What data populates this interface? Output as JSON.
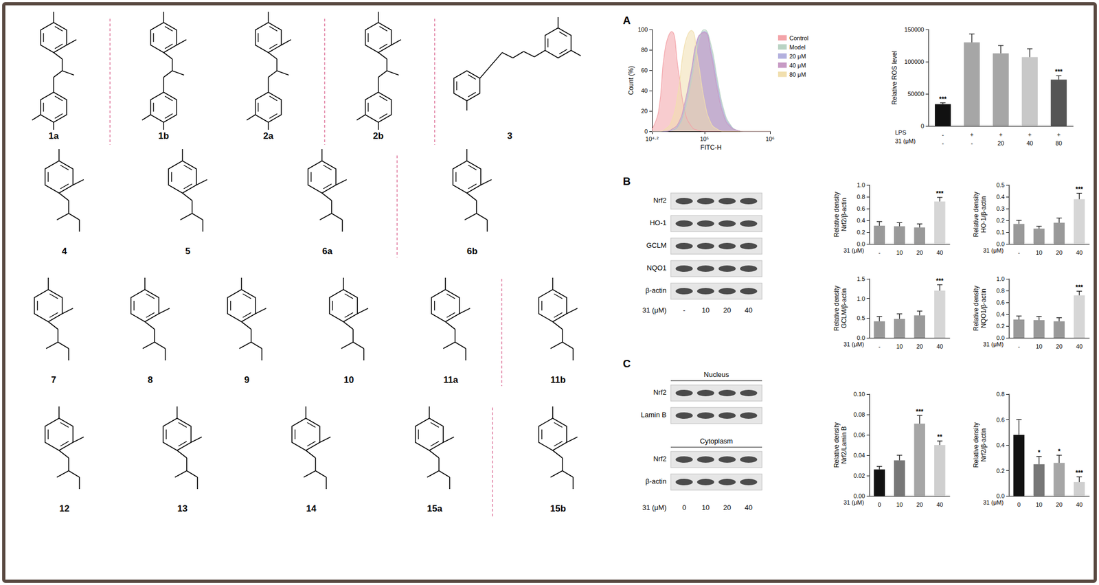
{
  "panel_labels": [
    "A",
    "B",
    "C"
  ],
  "structures": [
    "1a",
    "1b",
    "2a",
    "2b",
    "3",
    "4",
    "5",
    "6a",
    "6b",
    "7",
    "8",
    "9",
    "10",
    "11a",
    "11b",
    "12",
    "13",
    "14",
    "15a",
    "15b"
  ],
  "blots_B": {
    "rows": [
      "Nrf2",
      "HO-1",
      "GCLM",
      "NQO1",
      "β-actin"
    ],
    "lanes": [
      "-",
      "10",
      "20",
      "40"
    ],
    "lane_label": "31 (μM)"
  },
  "blots_C": {
    "groups": [
      {
        "title": "Nucleus",
        "rows": [
          "Nrf2",
          "Lamin B"
        ]
      },
      {
        "title": "Cytoplasm",
        "rows": [
          "Nrf2",
          "β-actin"
        ]
      }
    ],
    "lanes": [
      "0",
      "10",
      "20",
      "40"
    ],
    "lane_label": "31 (μM)"
  },
  "chart_data": [
    {
      "type": "line",
      "x_label": "FITC-H",
      "y_label": "Count (%)",
      "log": "x",
      "grid": false,
      "legend": "right",
      "x": [
        15848.93,
        20000,
        25000,
        31623,
        40000,
        50000,
        63096,
        79433,
        100000,
        125893,
        158489,
        199526,
        251189,
        316228,
        398107,
        501187,
        1000000
      ],
      "series": [
        {
          "name": "Control",
          "color": "#f3a3a8",
          "values": [
            2,
            20,
            80,
            98,
            60,
            20,
            5,
            1,
            0,
            0,
            0,
            0,
            0,
            0,
            0,
            0,
            0
          ]
        },
        {
          "name": "Model",
          "color": "#b9d3c3",
          "values": [
            0,
            0,
            0,
            1,
            5,
            20,
            50,
            85,
            100,
            85,
            50,
            20,
            6,
            1,
            0,
            0,
            0
          ]
        },
        {
          "name": "20 μM",
          "color": "#b3b0de",
          "values": [
            0,
            0,
            0,
            1,
            6,
            24,
            56,
            90,
            98,
            80,
            45,
            17,
            5,
            1,
            0,
            0,
            0
          ]
        },
        {
          "name": "40 μM",
          "color": "#c79ac4",
          "values": [
            0,
            0,
            0,
            2,
            8,
            28,
            60,
            92,
            97,
            76,
            40,
            14,
            4,
            1,
            0,
            0,
            0
          ]
        },
        {
          "name": "80 μM",
          "color": "#f1dfae",
          "values": [
            0,
            0,
            2,
            10,
            40,
            85,
            99,
            70,
            30,
            8,
            2,
            0,
            0,
            0,
            0,
            0,
            0
          ]
        }
      ],
      "xlim": [
        15848.93,
        1000000
      ],
      "xticks": [
        {
          "value": 15848.93,
          "label": "10⁴·²"
        },
        {
          "value": 100000,
          "label": "10⁵"
        },
        {
          "value": 1000000,
          "label": "10⁶"
        }
      ],
      "ylim": [
        0,
        100
      ],
      "yticks": [
        0,
        20,
        40,
        60,
        80,
        100
      ]
    },
    {
      "type": "bar",
      "y_label": "Relative ROS level",
      "grid": false,
      "x_rows": [
        {
          "label": "LPS",
          "values": [
            "-",
            "+",
            "+",
            "+",
            "+"
          ]
        },
        {
          "label": "31 (μM)",
          "values": [
            "-",
            "-",
            "20",
            "40",
            "80"
          ]
        }
      ],
      "values": [
        34000,
        130000,
        113000,
        107000,
        72000
      ],
      "errors": [
        2000,
        13000,
        12000,
        13000,
        6000
      ],
      "annotations": [
        "***",
        null,
        null,
        null,
        "***"
      ],
      "colors": [
        "#111111",
        "#a6a6a6",
        "#a6a6a6",
        "#c8c8c8",
        "#555555"
      ],
      "ylim": [
        0,
        150000
      ],
      "yticks": [
        0,
        50000,
        100000,
        150000
      ]
    },
    {
      "type": "bar",
      "y_label": "Relative density\nNrf2/β-actin",
      "x_label": "31 (μM)",
      "grid": false,
      "categories": [
        "-",
        "10",
        "20",
        "40"
      ],
      "values": [
        0.31,
        0.3,
        0.28,
        0.72
      ],
      "errors": [
        0.07,
        0.06,
        0.06,
        0.07
      ],
      "annotations": [
        null,
        null,
        null,
        "***"
      ],
      "colors": [
        "#999999",
        "#999999",
        "#999999",
        "#d6d6d6"
      ],
      "ylim": [
        0,
        1
      ],
      "yticks": [
        {
          "value": 0,
          "label": "0.0"
        },
        0.2,
        0.4,
        0.6,
        0.8,
        {
          "value": 1,
          "label": "1.0"
        }
      ]
    },
    {
      "type": "bar",
      "y_label": "Relative density\nHO-1/β-actin",
      "x_label": "31 (μM)",
      "grid": false,
      "categories": [
        "-",
        "10",
        "20",
        "40"
      ],
      "values": [
        0.17,
        0.13,
        0.18,
        0.38
      ],
      "errors": [
        0.03,
        0.02,
        0.04,
        0.05
      ],
      "annotations": [
        null,
        null,
        null,
        "***"
      ],
      "colors": [
        "#999999",
        "#999999",
        "#999999",
        "#d6d6d6"
      ],
      "ylim": [
        0,
        0.5
      ],
      "yticks": [
        {
          "value": 0,
          "label": "0.0"
        },
        0.1,
        0.2,
        0.3,
        0.4,
        0.5
      ]
    },
    {
      "type": "bar",
      "y_label": "Relative density\nGCLM/β-actin",
      "x_label": "31 (μM)",
      "grid": false,
      "categories": [
        "-",
        "10",
        "20",
        "40"
      ],
      "values": [
        0.42,
        0.48,
        0.57,
        1.2
      ],
      "errors": [
        0.12,
        0.13,
        0.11,
        0.15
      ],
      "annotations": [
        null,
        null,
        null,
        "***"
      ],
      "colors": [
        "#999999",
        "#999999",
        "#999999",
        "#d6d6d6"
      ],
      "ylim": [
        0,
        1.5
      ],
      "yticks": [
        {
          "value": 0,
          "label": "0.0"
        },
        0.5,
        {
          "value": 1,
          "label": "1.0"
        },
        1.5
      ]
    },
    {
      "type": "bar",
      "y_label": "Relative density\nNQO1/β-actin",
      "x_label": "31 (μM)",
      "grid": false,
      "categories": [
        "-",
        "10",
        "20",
        "40"
      ],
      "values": [
        0.31,
        0.3,
        0.28,
        0.72
      ],
      "errors": [
        0.06,
        0.06,
        0.06,
        0.07
      ],
      "annotations": [
        null,
        null,
        null,
        "***"
      ],
      "colors": [
        "#999999",
        "#999999",
        "#999999",
        "#d6d6d6"
      ],
      "ylim": [
        0,
        1
      ],
      "yticks": [
        {
          "value": 0,
          "label": "0.0"
        },
        0.2,
        0.4,
        0.6,
        0.8,
        {
          "value": 1,
          "label": "1.0"
        }
      ]
    },
    {
      "type": "bar",
      "y_label": "Relative density\nNrf2/Lamin B",
      "x_label": "31 (μM)",
      "grid": false,
      "categories": [
        "0",
        "10",
        "20",
        "40"
      ],
      "values": [
        0.026,
        0.035,
        0.071,
        0.05
      ],
      "errors": [
        0.003,
        0.005,
        0.008,
        0.004
      ],
      "annotations": [
        null,
        null,
        "***",
        "**"
      ],
      "colors": [
        "#111111",
        "#777777",
        "#a6a6a6",
        "#cfcfcf"
      ],
      "ylim": [
        0,
        0.1
      ],
      "yticks": [
        {
          "value": 0,
          "label": "0.00"
        },
        0.02,
        0.04,
        0.06,
        0.08,
        {
          "value": 0.1,
          "label": "0.10"
        }
      ]
    },
    {
      "type": "bar",
      "y_label": "Relative density\nNrf2/β-actin",
      "x_label": "31 (μM)",
      "grid": false,
      "categories": [
        "0",
        "10",
        "20",
        "40"
      ],
      "values": [
        0.48,
        0.25,
        0.26,
        0.11
      ],
      "errors": [
        0.12,
        0.06,
        0.06,
        0.04
      ],
      "annotations": [
        null,
        "*",
        "*",
        "***"
      ],
      "colors": [
        "#111111",
        "#777777",
        "#a6a6a6",
        "#cfcfcf"
      ],
      "ylim": [
        0,
        0.8
      ],
      "yticks": [
        {
          "value": 0,
          "label": "0.0"
        },
        0.2,
        0.4,
        0.6,
        0.8
      ]
    }
  ]
}
